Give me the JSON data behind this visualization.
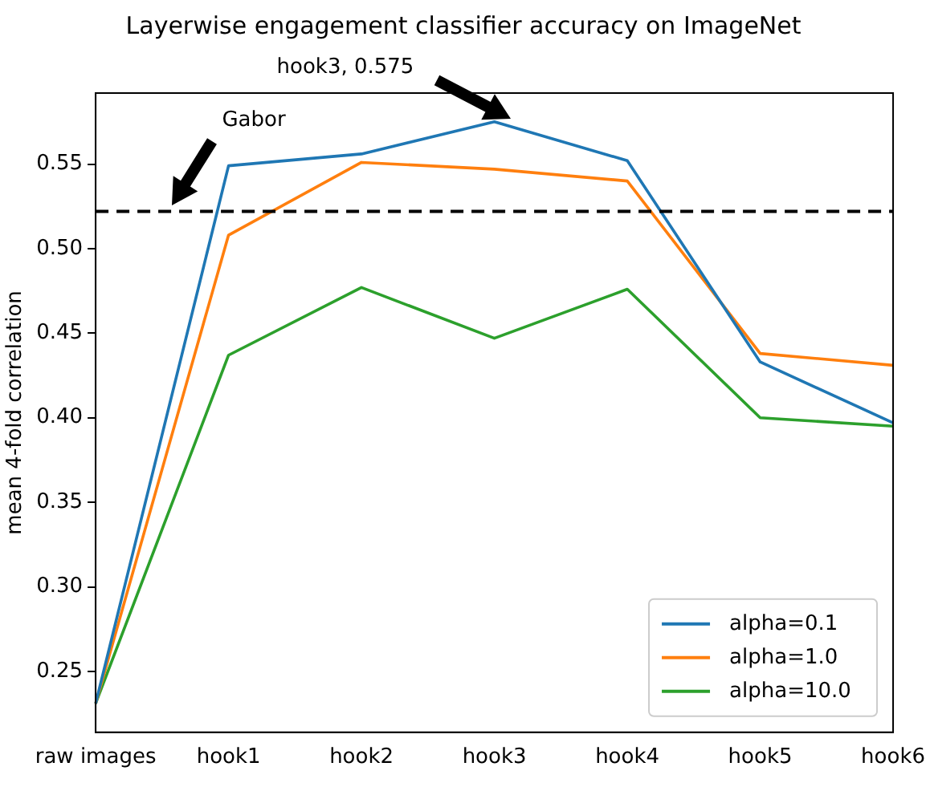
{
  "chart_data": {
    "type": "line",
    "title": "Layerwise engagement classifier accuracy on ImageNet",
    "ylabel": "mean 4-fold correlation",
    "categories": [
      "raw images",
      "hook1",
      "hook2",
      "hook3",
      "hook4",
      "hook5",
      "hook6"
    ],
    "series": [
      {
        "name": "alpha=0.1",
        "color": "#1f77b4",
        "values": [
          0.231,
          0.549,
          0.556,
          0.575,
          0.552,
          0.433,
          0.397
        ]
      },
      {
        "name": "alpha=1.0",
        "color": "#ff7f0e",
        "values": [
          0.231,
          0.508,
          0.551,
          0.547,
          0.54,
          0.438,
          0.431
        ]
      },
      {
        "name": "alpha=10.0",
        "color": "#2ca02c",
        "values": [
          0.231,
          0.437,
          0.477,
          0.447,
          0.476,
          0.4,
          0.395
        ]
      }
    ],
    "ylim": [
      0.214,
      0.592
    ],
    "yticks": [
      0.25,
      {
        "value": 0.3,
        "label": "0.30"
      },
      0.35,
      {
        "value": 0.4,
        "label": "0.40"
      },
      0.45,
      {
        "value": 0.5,
        "label": "0.50"
      },
      0.55
    ],
    "ref_lines": [
      {
        "axis": "y",
        "value": 0.522,
        "color": "#000000",
        "line_style": "dashed"
      }
    ],
    "annotations": [
      "Gabor",
      "hook3, 0.575"
    ],
    "legend": "bottom right",
    "grid": false,
    "marker": "none",
    "line_style": "solid"
  }
}
